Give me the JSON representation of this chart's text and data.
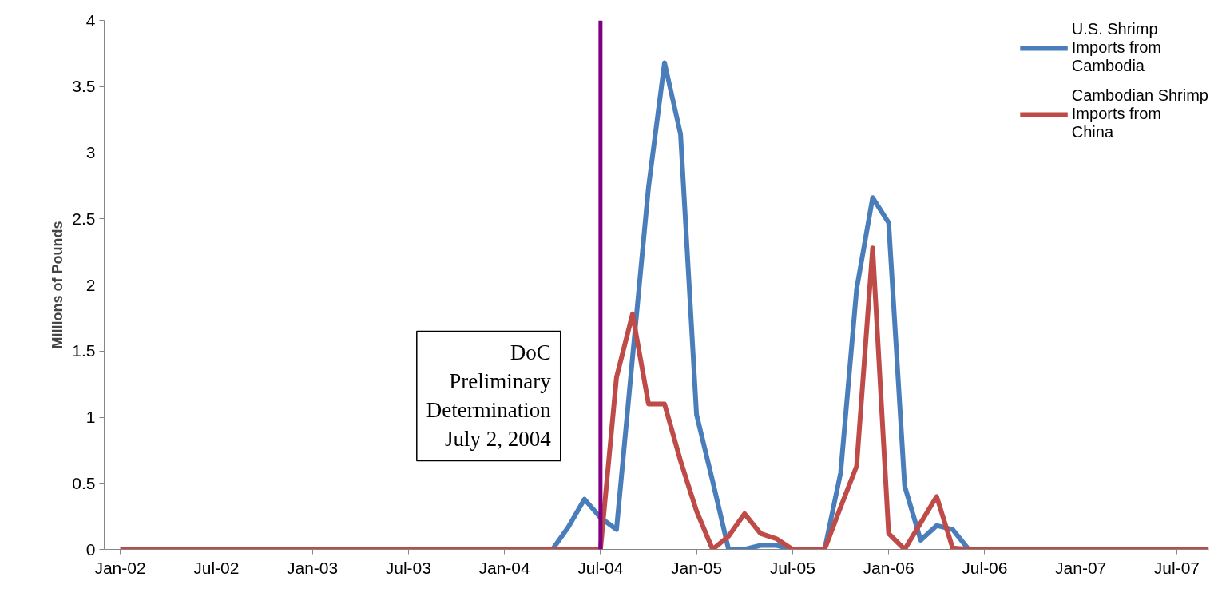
{
  "chart_data": {
    "type": "line",
    "ylabel": "Millions of Pounds",
    "x": [
      "2002-01",
      "2002-02",
      "2002-03",
      "2002-04",
      "2002-05",
      "2002-06",
      "2002-07",
      "2002-08",
      "2002-09",
      "2002-10",
      "2002-11",
      "2002-12",
      "2003-01",
      "2003-02",
      "2003-03",
      "2003-04",
      "2003-05",
      "2003-06",
      "2003-07",
      "2003-08",
      "2003-09",
      "2003-10",
      "2003-11",
      "2003-12",
      "2004-01",
      "2004-02",
      "2004-03",
      "2004-04",
      "2004-05",
      "2004-06",
      "2004-07",
      "2004-08",
      "2004-09",
      "2004-10",
      "2004-11",
      "2004-12",
      "2005-01",
      "2005-02",
      "2005-03",
      "2005-04",
      "2005-05",
      "2005-06",
      "2005-07",
      "2005-08",
      "2005-09",
      "2005-10",
      "2005-11",
      "2005-12",
      "2006-01",
      "2006-02",
      "2006-03",
      "2006-04",
      "2006-05",
      "2006-06",
      "2006-07",
      "2006-08",
      "2006-09",
      "2006-10",
      "2006-11",
      "2006-12",
      "2007-01",
      "2007-02",
      "2007-03",
      "2007-04",
      "2007-05",
      "2007-06",
      "2007-07",
      "2007-08",
      "2007-09"
    ],
    "series": [
      {
        "name": "U.S. Shrimp Imports from Cambodia",
        "color": "#4a7ebb",
        "values": [
          null,
          null,
          null,
          null,
          null,
          null,
          null,
          null,
          null,
          null,
          null,
          null,
          null,
          null,
          null,
          null,
          null,
          null,
          null,
          null,
          null,
          null,
          null,
          null,
          null,
          null,
          null,
          0,
          0.17,
          0.38,
          0.24,
          0.15,
          1.45,
          2.74,
          3.68,
          3.14,
          1.02,
          0.52,
          0,
          0,
          0.03,
          0.03,
          0,
          null,
          0,
          0.58,
          1.97,
          2.66,
          2.47,
          0.48,
          0.07,
          0.18,
          0.15,
          0,
          null,
          null,
          null,
          null,
          null,
          null,
          null,
          null,
          null,
          null,
          null,
          null,
          null,
          null,
          null
        ]
      },
      {
        "name": "Cambodian Shrimp Imports from China",
        "color": "#be4b48",
        "values": [
          0,
          0,
          0,
          0,
          0,
          0,
          0,
          0,
          0,
          0,
          0,
          0,
          0,
          0,
          0,
          0,
          0,
          0,
          0,
          0,
          0,
          0,
          0,
          0,
          0,
          0,
          0,
          0,
          0,
          0,
          0,
          1.3,
          1.78,
          1.1,
          1.1,
          0.67,
          0.29,
          0,
          0.1,
          0.27,
          0.12,
          0.08,
          0,
          0,
          0,
          0.32,
          0.63,
          2.28,
          0.12,
          0,
          0.2,
          0.4,
          0.01,
          0,
          0,
          0,
          0,
          0,
          0,
          0,
          0,
          0,
          0,
          0,
          0,
          0,
          0,
          0,
          0
        ]
      }
    ],
    "xlim": [
      "2001-12",
      "2007-09"
    ],
    "xticks": [
      {
        "value": "2002-01",
        "label": "Jan-02"
      },
      {
        "value": "2002-07",
        "label": "Jul-02"
      },
      {
        "value": "2003-01",
        "label": "Jan-03"
      },
      {
        "value": "2003-07",
        "label": "Jul-03"
      },
      {
        "value": "2004-01",
        "label": "Jan-04"
      },
      {
        "value": "2004-07",
        "label": "Jul-04"
      },
      {
        "value": "2005-01",
        "label": "Jan-05"
      },
      {
        "value": "2005-07",
        "label": "Jul-05"
      },
      {
        "value": "2006-01",
        "label": "Jan-06"
      },
      {
        "value": "2006-07",
        "label": "Jul-06"
      },
      {
        "value": "2007-01",
        "label": "Jan-07"
      },
      {
        "value": "2007-07",
        "label": "Jul-07"
      }
    ],
    "ylim": [
      0,
      4
    ],
    "yticks": [
      0,
      0.5,
      1,
      1.5,
      2,
      2.5,
      3,
      3.5,
      4
    ],
    "ref_lines": [
      {
        "axis": "x",
        "value": "2004-07",
        "label": "DoC\nPreliminary\nDetermination\nJuly 2, 2004",
        "color": "#800080"
      }
    ],
    "grid": false,
    "legend": "top right",
    "marker": "none",
    "line_style": "solid"
  }
}
